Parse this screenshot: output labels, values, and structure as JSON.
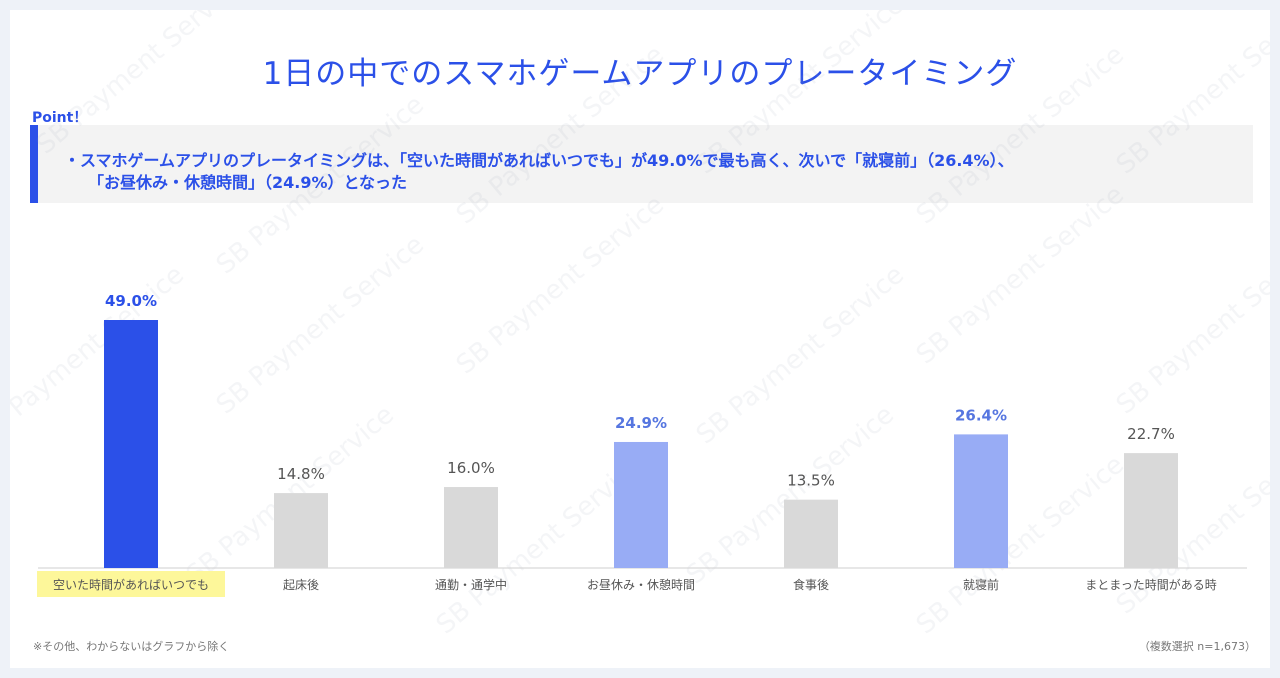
{
  "title": "1日の中でのスマホゲームアプリのプレータイミング",
  "point": {
    "label": "Point！",
    "line1": "・スマホゲームアプリのプレータイミングは、「空いた時間があればいつでも」が49.0%で最も高く、次いで「就寝前」（26.4%）、",
    "line2": "「お昼休み・休憩時間」（24.9%）となった"
  },
  "watermark": "SB Payment Service",
  "notes": {
    "left": "※その他、わからないはグラフから除く",
    "right": "（複数選択 n=1,673）"
  },
  "chart_data": {
    "type": "bar",
    "categories": [
      "空いた時間があればいつでも",
      "起床後",
      "通勤・通学中",
      "お昼休み・休憩時間",
      "食事後",
      "就寝前",
      "まとまった時間がある時"
    ],
    "values": [
      49.0,
      14.8,
      16.0,
      24.9,
      13.5,
      26.4,
      22.7
    ],
    "value_labels": [
      "49.0%",
      "14.8%",
      "16.0%",
      "24.9%",
      "13.5%",
      "26.4%",
      "22.7%"
    ],
    "highlight": [
      "primary",
      "none",
      "none",
      "secondary",
      "none",
      "secondary",
      "none"
    ],
    "highlighted_category": 0,
    "colors": {
      "primary": "#2b50e8",
      "secondary": "#98acf5",
      "none": "#d9d9d9",
      "label_primary": "#2b50e8",
      "label_secondary": "#5676e0",
      "label_none": "#555555",
      "category_highlight_bg": "#fdf79a"
    },
    "ylim": [
      0,
      50
    ],
    "xlabel": "",
    "ylabel": "",
    "grid": false
  }
}
